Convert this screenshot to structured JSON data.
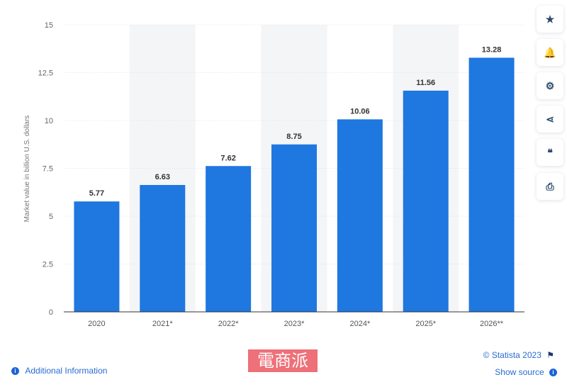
{
  "chart_data": {
    "type": "bar",
    "categories": [
      "2020",
      "2021*",
      "2022*",
      "2023*",
      "2024*",
      "2025*",
      "2026**"
    ],
    "values": [
      5.77,
      6.63,
      7.62,
      8.75,
      10.06,
      11.56,
      13.28
    ],
    "data_labels": [
      "5.77",
      "6.63",
      "7.62",
      "8.75",
      "10.06",
      "11.56",
      "13.28"
    ],
    "ylabel": "Market value in billion U.S. dollars",
    "ylim": [
      0,
      15
    ],
    "yticks": [
      "0",
      "2.5",
      "5",
      "7.5",
      "10",
      "12.5",
      "15"
    ],
    "grid": true,
    "bar_color": "#1f77e0"
  },
  "sidebar": {
    "icons": [
      "star-icon",
      "bell-icon",
      "gear-icon",
      "share-icon",
      "quote-icon",
      "print-icon"
    ],
    "glyphs": [
      "★",
      "🔔",
      "⚙",
      "⋖",
      "❝",
      "⎙"
    ]
  },
  "footer": {
    "additional_info": "Additional Information",
    "copyright": "© Statista 2023",
    "show_source": "Show source",
    "info_glyph": "i",
    "flag_glyph": "⚑"
  },
  "watermark": "電商派"
}
